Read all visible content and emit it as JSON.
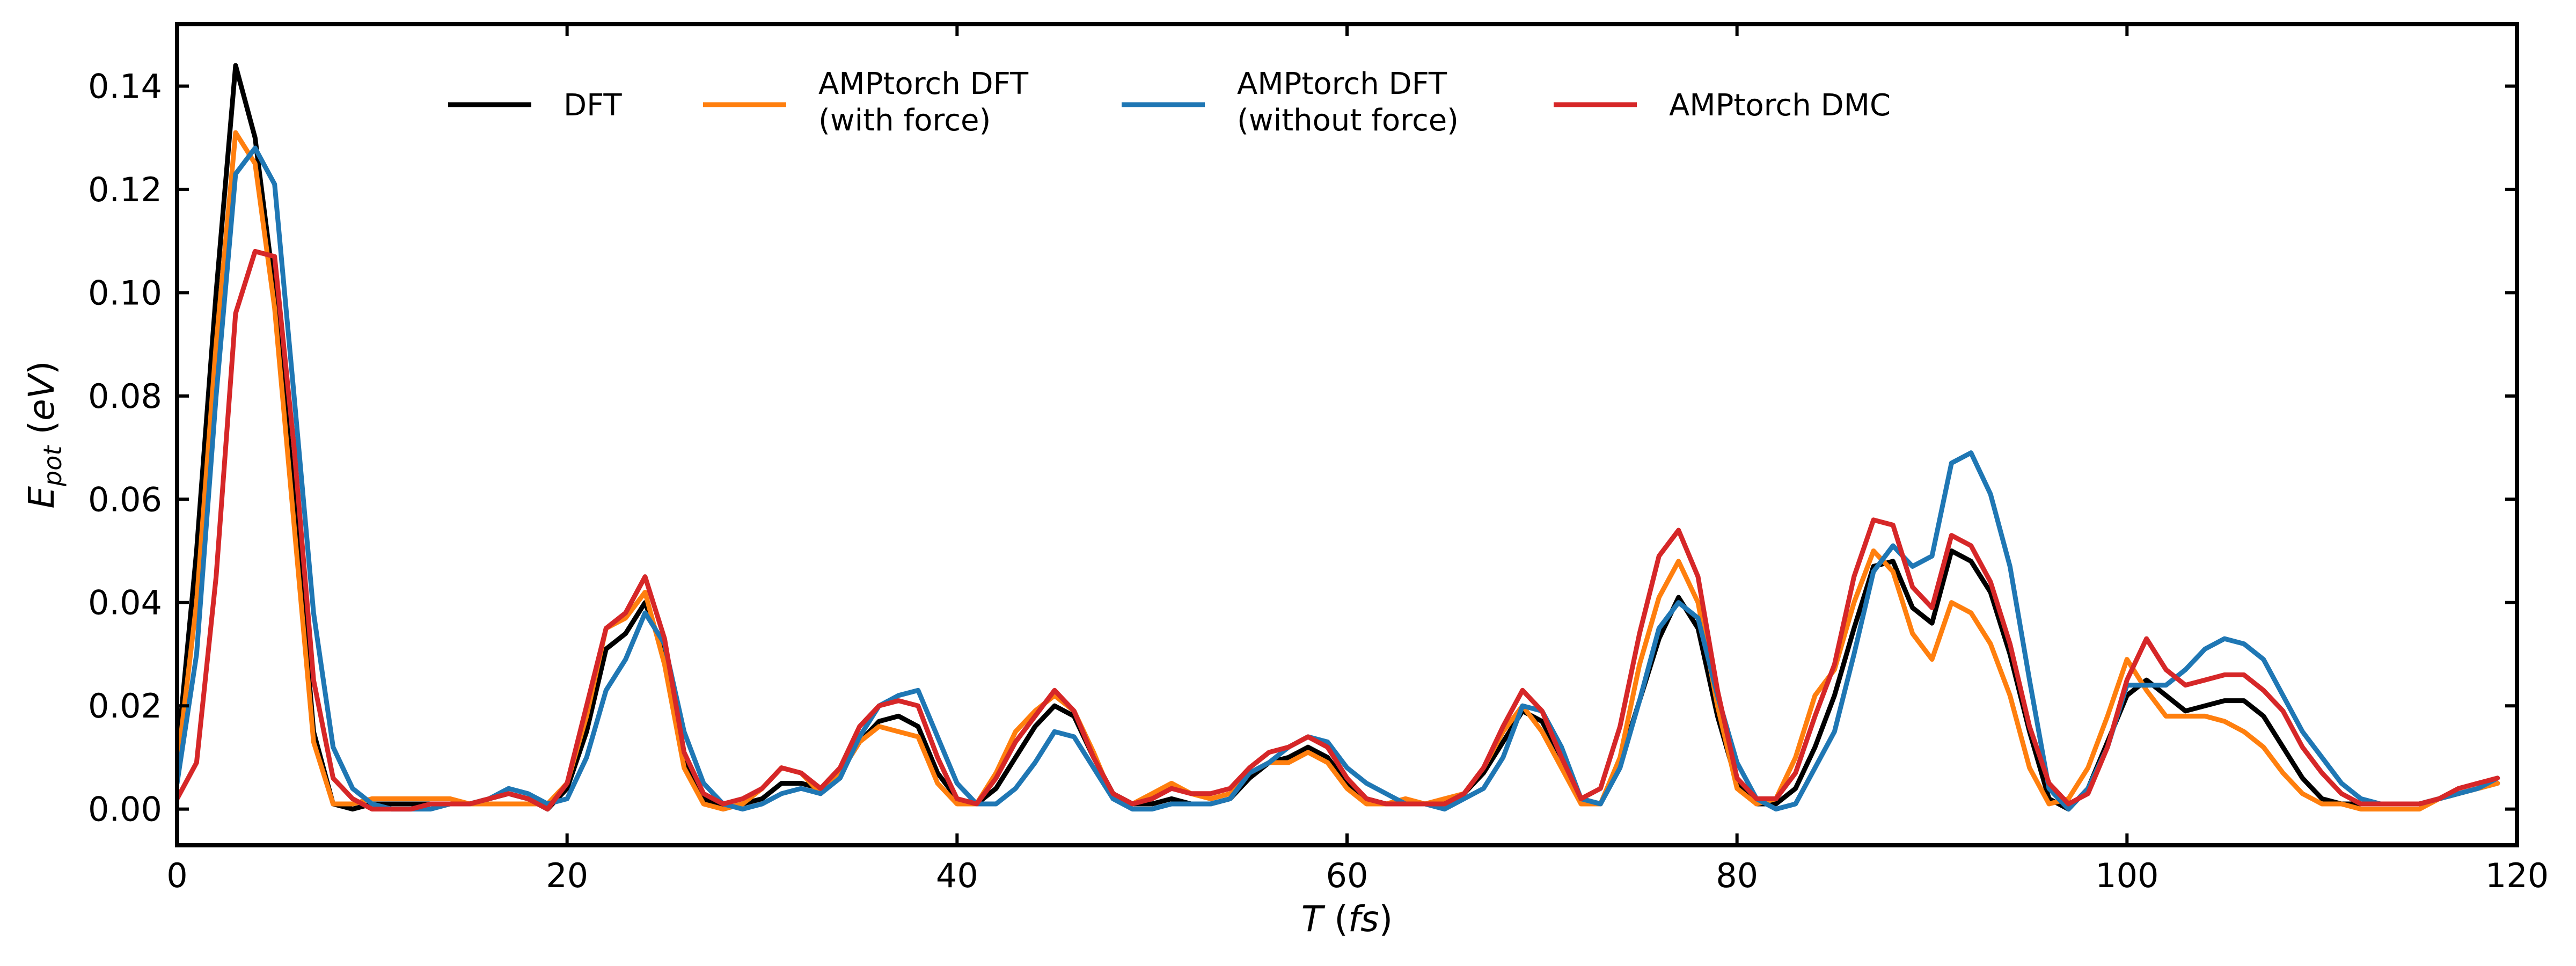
{
  "chart_data": {
    "type": "line",
    "title": "",
    "xlabel": "T (fs)",
    "xlabel_parts": {
      "main": "T",
      "unit": "(fs)"
    },
    "ylabel": "E_pot (eV)",
    "ylabel_parts": {
      "main": "E",
      "sub": "pot",
      "unit": "(eV)"
    },
    "xlim": [
      0,
      120
    ],
    "ylim": [
      -0.007,
      0.152
    ],
    "xticks": [
      0,
      20,
      40,
      60,
      80,
      100,
      120
    ],
    "xtick_labels": [
      "0",
      "20",
      "40",
      "60",
      "80",
      "100",
      "120"
    ],
    "yticks": [
      0.0,
      0.02,
      0.04,
      0.06,
      0.08,
      0.1,
      0.12,
      0.14
    ],
    "ytick_labels": [
      "0.00",
      "0.02",
      "0.04",
      "0.06",
      "0.08",
      "0.10",
      "0.12",
      "0.14"
    ],
    "grid": false,
    "legend_position": "top",
    "x": [
      0,
      1,
      2,
      3,
      4,
      5,
      6,
      7,
      8,
      9,
      10,
      11,
      12,
      13,
      14,
      15,
      16,
      17,
      18,
      19,
      20,
      21,
      22,
      23,
      24,
      25,
      26,
      27,
      28,
      29,
      30,
      31,
      32,
      33,
      34,
      35,
      36,
      37,
      38,
      39,
      40,
      41,
      42,
      43,
      44,
      45,
      46,
      47,
      48,
      49,
      50,
      51,
      52,
      53,
      54,
      55,
      56,
      57,
      58,
      59,
      60,
      61,
      62,
      63,
      64,
      65,
      66,
      67,
      68,
      69,
      70,
      71,
      72,
      73,
      74,
      75,
      76,
      77,
      78,
      79,
      80,
      81,
      82,
      83,
      84,
      85,
      86,
      87,
      88,
      89,
      90,
      91,
      92,
      93,
      94,
      95,
      96,
      97,
      98,
      99,
      100,
      101,
      102,
      103,
      104,
      105,
      106,
      107,
      108,
      109,
      110,
      111,
      112,
      113,
      114,
      115,
      116,
      117,
      118,
      119
    ],
    "series": [
      {
        "name": "DFT",
        "color": "#000000",
        "values": [
          0.01,
          0.05,
          0.1,
          0.144,
          0.13,
          0.1,
          0.06,
          0.015,
          0.001,
          0.0,
          0.001,
          0.001,
          0.001,
          0.001,
          0.001,
          0.001,
          0.002,
          0.003,
          0.002,
          0.0,
          0.004,
          0.015,
          0.031,
          0.034,
          0.04,
          0.03,
          0.01,
          0.002,
          0.0,
          0.001,
          0.002,
          0.005,
          0.005,
          0.004,
          0.007,
          0.013,
          0.017,
          0.018,
          0.016,
          0.007,
          0.002,
          0.001,
          0.004,
          0.01,
          0.016,
          0.02,
          0.018,
          0.01,
          0.003,
          0.001,
          0.001,
          0.002,
          0.001,
          0.001,
          0.002,
          0.006,
          0.009,
          0.01,
          0.012,
          0.01,
          0.005,
          0.002,
          0.001,
          0.001,
          0.001,
          0.001,
          0.003,
          0.007,
          0.013,
          0.019,
          0.017,
          0.01,
          0.002,
          0.001,
          0.009,
          0.021,
          0.033,
          0.041,
          0.035,
          0.018,
          0.005,
          0.001,
          0.001,
          0.004,
          0.012,
          0.022,
          0.035,
          0.047,
          0.048,
          0.039,
          0.036,
          0.05,
          0.048,
          0.042,
          0.03,
          0.015,
          0.002,
          0.0,
          0.004,
          0.013,
          0.022,
          0.025,
          0.022,
          0.019,
          0.02,
          0.021,
          0.021,
          0.018,
          0.012,
          0.006,
          0.002,
          0.001,
          0.001,
          0.001,
          0.001,
          0.001,
          0.002,
          0.003,
          0.004,
          0.005
        ]
      },
      {
        "name": "AMPtorch DFT\n(with force)",
        "name_lines": [
          "AMPtorch DFT",
          "(with force)"
        ],
        "color": "#ff7f0e",
        "values": [
          0.008,
          0.04,
          0.09,
          0.131,
          0.125,
          0.097,
          0.055,
          0.013,
          0.001,
          0.001,
          0.002,
          0.002,
          0.002,
          0.002,
          0.002,
          0.001,
          0.001,
          0.001,
          0.001,
          0.001,
          0.005,
          0.018,
          0.035,
          0.037,
          0.042,
          0.028,
          0.008,
          0.001,
          0.0,
          0.001,
          0.004,
          0.008,
          0.007,
          0.003,
          0.007,
          0.013,
          0.016,
          0.015,
          0.014,
          0.005,
          0.001,
          0.001,
          0.007,
          0.015,
          0.019,
          0.022,
          0.019,
          0.011,
          0.002,
          0.001,
          0.003,
          0.005,
          0.003,
          0.002,
          0.003,
          0.007,
          0.009,
          0.009,
          0.011,
          0.009,
          0.004,
          0.001,
          0.001,
          0.002,
          0.001,
          0.002,
          0.003,
          0.008,
          0.015,
          0.02,
          0.015,
          0.008,
          0.001,
          0.001,
          0.01,
          0.028,
          0.041,
          0.048,
          0.04,
          0.02,
          0.004,
          0.001,
          0.002,
          0.01,
          0.022,
          0.027,
          0.04,
          0.05,
          0.046,
          0.034,
          0.029,
          0.04,
          0.038,
          0.032,
          0.022,
          0.008,
          0.001,
          0.002,
          0.008,
          0.018,
          0.029,
          0.023,
          0.018,
          0.018,
          0.018,
          0.017,
          0.015,
          0.012,
          0.007,
          0.003,
          0.001,
          0.001,
          0.0,
          0.0,
          0.0,
          0.0,
          0.002,
          0.003,
          0.004,
          0.005
        ]
      },
      {
        "name": "AMPtorch DFT\n(without force)",
        "name_lines": [
          "AMPtorch DFT",
          "(without force)"
        ],
        "color": "#1f77b4",
        "values": [
          0.005,
          0.03,
          0.08,
          0.123,
          0.128,
          0.121,
          0.08,
          0.038,
          0.012,
          0.004,
          0.001,
          0.0,
          0.0,
          0.0,
          0.001,
          0.001,
          0.002,
          0.004,
          0.003,
          0.001,
          0.002,
          0.01,
          0.023,
          0.029,
          0.038,
          0.032,
          0.015,
          0.005,
          0.001,
          0.0,
          0.001,
          0.003,
          0.004,
          0.003,
          0.006,
          0.014,
          0.02,
          0.022,
          0.023,
          0.014,
          0.005,
          0.001,
          0.001,
          0.004,
          0.009,
          0.015,
          0.014,
          0.008,
          0.002,
          0.0,
          0.0,
          0.001,
          0.001,
          0.001,
          0.002,
          0.007,
          0.009,
          0.012,
          0.014,
          0.013,
          0.008,
          0.005,
          0.003,
          0.001,
          0.001,
          0.0,
          0.002,
          0.004,
          0.01,
          0.02,
          0.019,
          0.012,
          0.002,
          0.001,
          0.008,
          0.021,
          0.035,
          0.04,
          0.037,
          0.022,
          0.009,
          0.002,
          0.0,
          0.001,
          0.008,
          0.015,
          0.03,
          0.046,
          0.051,
          0.047,
          0.049,
          0.067,
          0.069,
          0.061,
          0.047,
          0.025,
          0.004,
          0.0,
          0.004,
          0.012,
          0.024,
          0.024,
          0.024,
          0.027,
          0.031,
          0.033,
          0.032,
          0.029,
          0.022,
          0.015,
          0.01,
          0.005,
          0.002,
          0.001,
          0.001,
          0.001,
          0.002,
          0.003,
          0.004,
          0.006
        ]
      },
      {
        "name": "AMPtorch DMC",
        "color": "#d62728",
        "values": [
          0.002,
          0.009,
          0.045,
          0.096,
          0.108,
          0.107,
          0.07,
          0.025,
          0.006,
          0.002,
          0.0,
          0.0,
          0.0,
          0.001,
          0.001,
          0.001,
          0.002,
          0.003,
          0.002,
          0.0,
          0.005,
          0.02,
          0.035,
          0.038,
          0.045,
          0.033,
          0.011,
          0.003,
          0.001,
          0.002,
          0.004,
          0.008,
          0.007,
          0.004,
          0.008,
          0.016,
          0.02,
          0.021,
          0.02,
          0.01,
          0.002,
          0.001,
          0.006,
          0.013,
          0.018,
          0.023,
          0.019,
          0.01,
          0.003,
          0.001,
          0.002,
          0.004,
          0.003,
          0.003,
          0.004,
          0.008,
          0.011,
          0.012,
          0.014,
          0.012,
          0.006,
          0.002,
          0.001,
          0.001,
          0.001,
          0.001,
          0.003,
          0.008,
          0.016,
          0.023,
          0.019,
          0.01,
          0.002,
          0.004,
          0.016,
          0.034,
          0.049,
          0.054,
          0.045,
          0.023,
          0.006,
          0.002,
          0.002,
          0.007,
          0.018,
          0.028,
          0.045,
          0.056,
          0.055,
          0.043,
          0.039,
          0.053,
          0.051,
          0.044,
          0.032,
          0.016,
          0.005,
          0.001,
          0.003,
          0.012,
          0.025,
          0.033,
          0.027,
          0.024,
          0.025,
          0.026,
          0.026,
          0.023,
          0.019,
          0.012,
          0.007,
          0.003,
          0.001,
          0.001,
          0.001,
          0.001,
          0.002,
          0.004,
          0.005,
          0.006
        ]
      }
    ]
  }
}
